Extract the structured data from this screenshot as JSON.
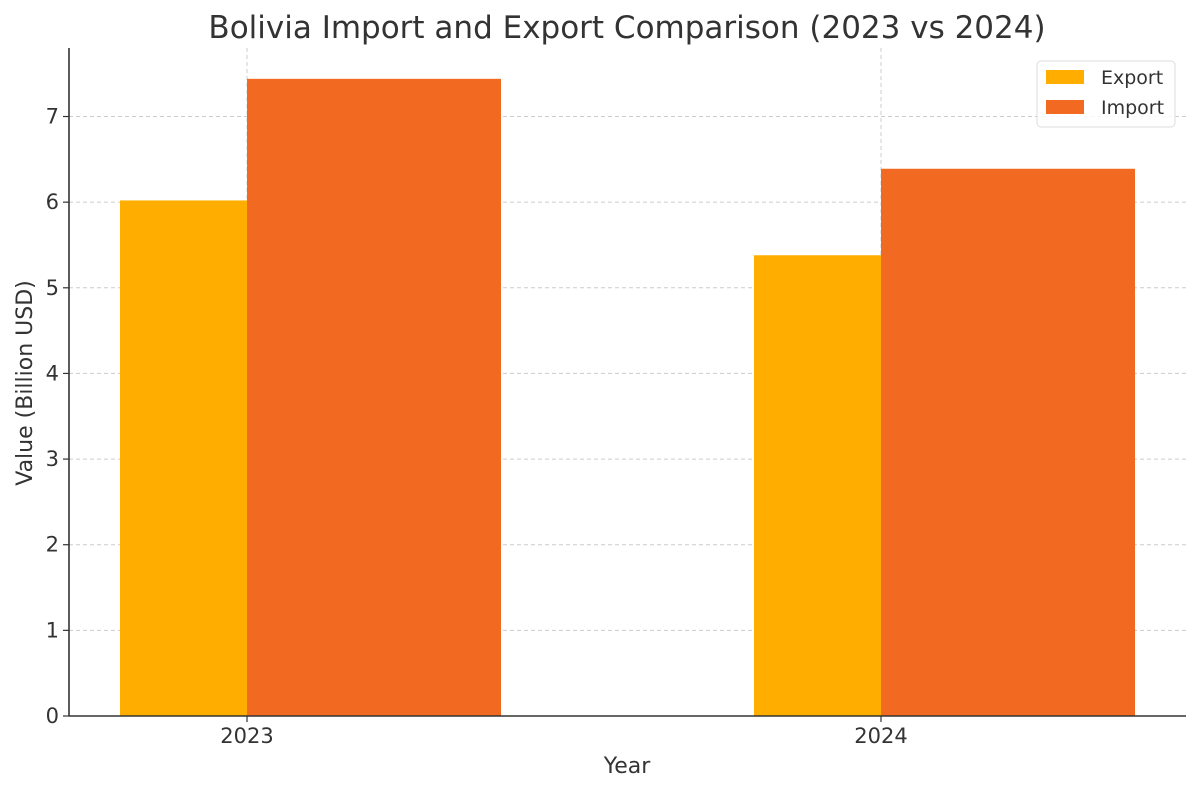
{
  "chart_data": {
    "type": "bar",
    "title": "Bolivia Import and Export Comparison (2023 vs 2024)",
    "xlabel": "Year",
    "ylabel": "Value (Billion USD)",
    "categories": [
      "2023",
      "2024"
    ],
    "series": [
      {
        "name": "Export",
        "color": "#FFAE00",
        "values": [
          6.02,
          5.38
        ]
      },
      {
        "name": "Import",
        "color": "#F26A22",
        "values": [
          7.44,
          6.39
        ]
      }
    ],
    "ylim": [
      0,
      7.8
    ],
    "yticks": [
      "0",
      "1",
      "2",
      "3",
      "4",
      "5",
      "6",
      "7"
    ],
    "grid": true,
    "legend": "top-right"
  }
}
